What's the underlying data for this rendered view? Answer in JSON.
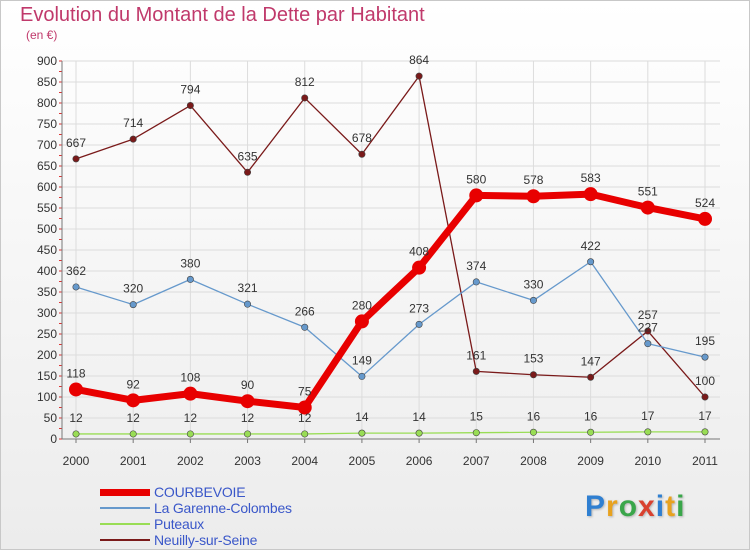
{
  "title": "Evolution du Montant de la Dette par Habitant",
  "subtitle": "(en €)",
  "logo": {
    "text": "Proxiti",
    "colors": [
      "#2f7fd1",
      "#e8a21f",
      "#3aa64a",
      "#d9412f",
      "#2f7fd1",
      "#e8a21f",
      "#3aa64a"
    ]
  },
  "chart_data": {
    "type": "line",
    "x": [
      "2000",
      "2001",
      "2002",
      "2003",
      "2004",
      "2005",
      "2006",
      "2007",
      "2008",
      "2009",
      "2010",
      "2011"
    ],
    "ylim": [
      0,
      900
    ],
    "yticks": [
      0,
      50,
      100,
      150,
      200,
      250,
      300,
      350,
      400,
      450,
      500,
      550,
      600,
      650,
      700,
      750,
      800,
      850,
      900
    ],
    "grid": true,
    "legend_position": "bottom-left",
    "series": [
      {
        "name": "COURBEVOIE",
        "color": "#e80000",
        "width": 7,
        "values": [
          118,
          92,
          108,
          90,
          75,
          280,
          408,
          580,
          578,
          583,
          551,
          524
        ],
        "labels": [
          "118",
          "92",
          "108",
          "90",
          "75",
          "280",
          "408",
          "580",
          "578",
          "583",
          "551",
          "524"
        ]
      },
      {
        "name": "La Garenne-Colombes",
        "color": "#6699cc",
        "width": 1.3,
        "values": [
          362,
          320,
          380,
          321,
          266,
          149,
          273,
          374,
          330,
          422,
          227,
          195
        ],
        "labels": [
          "362",
          "320",
          "380",
          "321",
          "266",
          "149",
          "273",
          "374",
          "330",
          "422",
          "227",
          "195"
        ]
      },
      {
        "name": "Puteaux",
        "color": "#99dd55",
        "width": 1.3,
        "values": [
          12,
          12,
          12,
          12,
          12,
          14,
          14,
          15,
          16,
          16,
          17,
          17
        ],
        "labels": [
          "12",
          "12",
          "12",
          "12",
          "12",
          "14",
          "14",
          "15",
          "16",
          "16",
          "17",
          "17"
        ]
      },
      {
        "name": "Neuilly-sur-Seine",
        "color": "#7a1a1a",
        "width": 1.3,
        "values": [
          667,
          714,
          794,
          635,
          812,
          678,
          864,
          161,
          153,
          147,
          257,
          100
        ],
        "labels": [
          "667",
          "714",
          "794",
          "635",
          "812",
          "678",
          "864",
          "161",
          "153",
          "147",
          "257",
          "100"
        ]
      }
    ]
  }
}
